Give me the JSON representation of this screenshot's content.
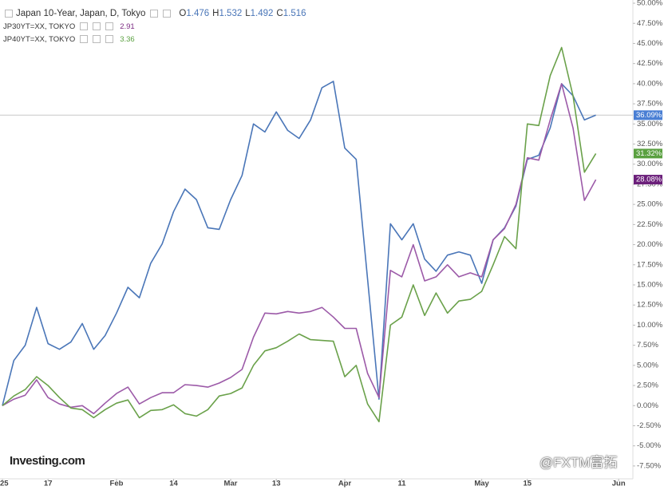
{
  "chart_data": {
    "type": "line",
    "categories": [
      "25",
      null,
      null,
      null,
      "17",
      null,
      null,
      null,
      null,
      null,
      "Feb",
      null,
      null,
      null,
      null,
      "14",
      null,
      null,
      null,
      null,
      "Mar",
      null,
      null,
      null,
      "13",
      null,
      null,
      null,
      null,
      null,
      "Apr",
      null,
      null,
      null,
      null,
      "11",
      null,
      null,
      null,
      null,
      null,
      null,
      "May",
      null,
      null,
      null,
      "15",
      null,
      null,
      null,
      null,
      null,
      null,
      null,
      "Jun"
    ],
    "series": [
      {
        "name": "Japan 10-Year, Japan, D, Tokyo",
        "color": "#4a76b8",
        "label_color": "#4a7fd4",
        "end_label": "36.09%",
        "ohlc": [
          {
            "label": "O",
            "value": 1.476
          },
          {
            "label": "H",
            "value": 1.532
          },
          {
            "label": "L",
            "value": 1.492
          },
          {
            "label": "C",
            "value": 1.516
          }
        ],
        "values": [
          0,
          5.6,
          7.5,
          12.2,
          7.7,
          7.0,
          7.9,
          10.2,
          7.0,
          8.7,
          11.5,
          14.7,
          13.4,
          17.7,
          20.1,
          24.1,
          26.9,
          25.6,
          22.1,
          21.9,
          25.6,
          28.6,
          35.0,
          34.0,
          36.5,
          34.2,
          33.2,
          35.5,
          39.5,
          40.3,
          32.0,
          30.6,
          15.7,
          0.8,
          22.6,
          20.6,
          22.6,
          18.2,
          16.7,
          18.7,
          19.1,
          18.7,
          15.2,
          20.6,
          22.1,
          24.8,
          30.6,
          31.1,
          34.5,
          40.0,
          38.5,
          35.5,
          36.09,
          null,
          null
        ]
      },
      {
        "name": "JP30YT=XX, TOKYO",
        "color": "#9c5aa8",
        "label_color": "#6b1f7a",
        "end_label": "28.08%",
        "last": 2.91,
        "values": [
          0,
          0.8,
          1.3,
          3.2,
          1.0,
          0.2,
          -0.2,
          0.0,
          -1.0,
          0.3,
          1.5,
          2.3,
          0.2,
          1.0,
          1.6,
          1.6,
          2.6,
          2.5,
          2.3,
          2.8,
          3.5,
          4.5,
          8.5,
          11.5,
          11.4,
          11.7,
          11.5,
          11.7,
          12.2,
          11.0,
          9.6,
          9.6,
          4.0,
          1.0,
          16.8,
          16.0,
          20.0,
          15.5,
          16.0,
          17.5,
          16.0,
          16.5,
          16.0,
          20.6,
          22.0,
          25.0,
          30.8,
          30.5,
          35.5,
          40.0,
          34.5,
          25.5,
          28.08,
          null,
          null
        ]
      },
      {
        "name": "JP40YT=XX, TOKYO",
        "color": "#6aa14a",
        "label_color": "#5aa040",
        "end_label": "31.32%",
        "last": 3.36,
        "values": [
          0,
          1.2,
          2.0,
          3.6,
          2.5,
          1.0,
          -0.3,
          -0.5,
          -1.5,
          -0.5,
          0.3,
          0.7,
          -1.5,
          -0.6,
          -0.5,
          0.1,
          -1.0,
          -1.3,
          -0.5,
          1.2,
          1.5,
          2.2,
          5.0,
          6.8,
          7.2,
          8.0,
          8.9,
          8.2,
          8.1,
          8.0,
          3.6,
          5.0,
          0.2,
          -2.0,
          10.0,
          11.0,
          15.0,
          11.2,
          14.0,
          11.5,
          13.0,
          13.2,
          14.2,
          17.5,
          21.0,
          19.5,
          35.0,
          34.8,
          41.0,
          44.5,
          38.5,
          29.0,
          31.32,
          null,
          null
        ]
      }
    ],
    "ylim": [
      -8.7,
      50.4
    ],
    "yticks": [
      {
        "value": -7.5,
        "label": "-7.50%"
      },
      {
        "value": -5,
        "label": "-5.00%"
      },
      {
        "value": -2.5,
        "label": "-2.50%"
      },
      {
        "value": 0,
        "label": "0.00%"
      },
      {
        "value": 2.5,
        "label": "2.50%"
      },
      {
        "value": 5,
        "label": "5.00%"
      },
      {
        "value": 7.5,
        "label": "7.50%"
      },
      {
        "value": 10,
        "label": "10.00%"
      },
      {
        "value": 12.5,
        "label": "12.50%"
      },
      {
        "value": 15,
        "label": "15.00%"
      },
      {
        "value": 17.5,
        "label": "17.50%"
      },
      {
        "value": 20,
        "label": "20.00%"
      },
      {
        "value": 22.5,
        "label": "22.50%"
      },
      {
        "value": 25,
        "label": "25.00%"
      },
      {
        "value": 27.5,
        "label": "27.50%"
      },
      {
        "value": 30,
        "label": "30.00%"
      },
      {
        "value": 32.5,
        "label": "32.50%"
      },
      {
        "value": 35,
        "label": "35.00%"
      },
      {
        "value": 37.5,
        "label": "37.50%"
      },
      {
        "value": 40,
        "label": "40.00%"
      },
      {
        "value": 42.5,
        "label": "42.50%"
      },
      {
        "value": 45,
        "label": "45.00%"
      },
      {
        "value": 47.5,
        "label": "47.50%"
      },
      {
        "value": 50,
        "label": "50.00%"
      }
    ],
    "grid": false,
    "branding": "Investing.com",
    "watermark": "@FXTM富拓"
  }
}
